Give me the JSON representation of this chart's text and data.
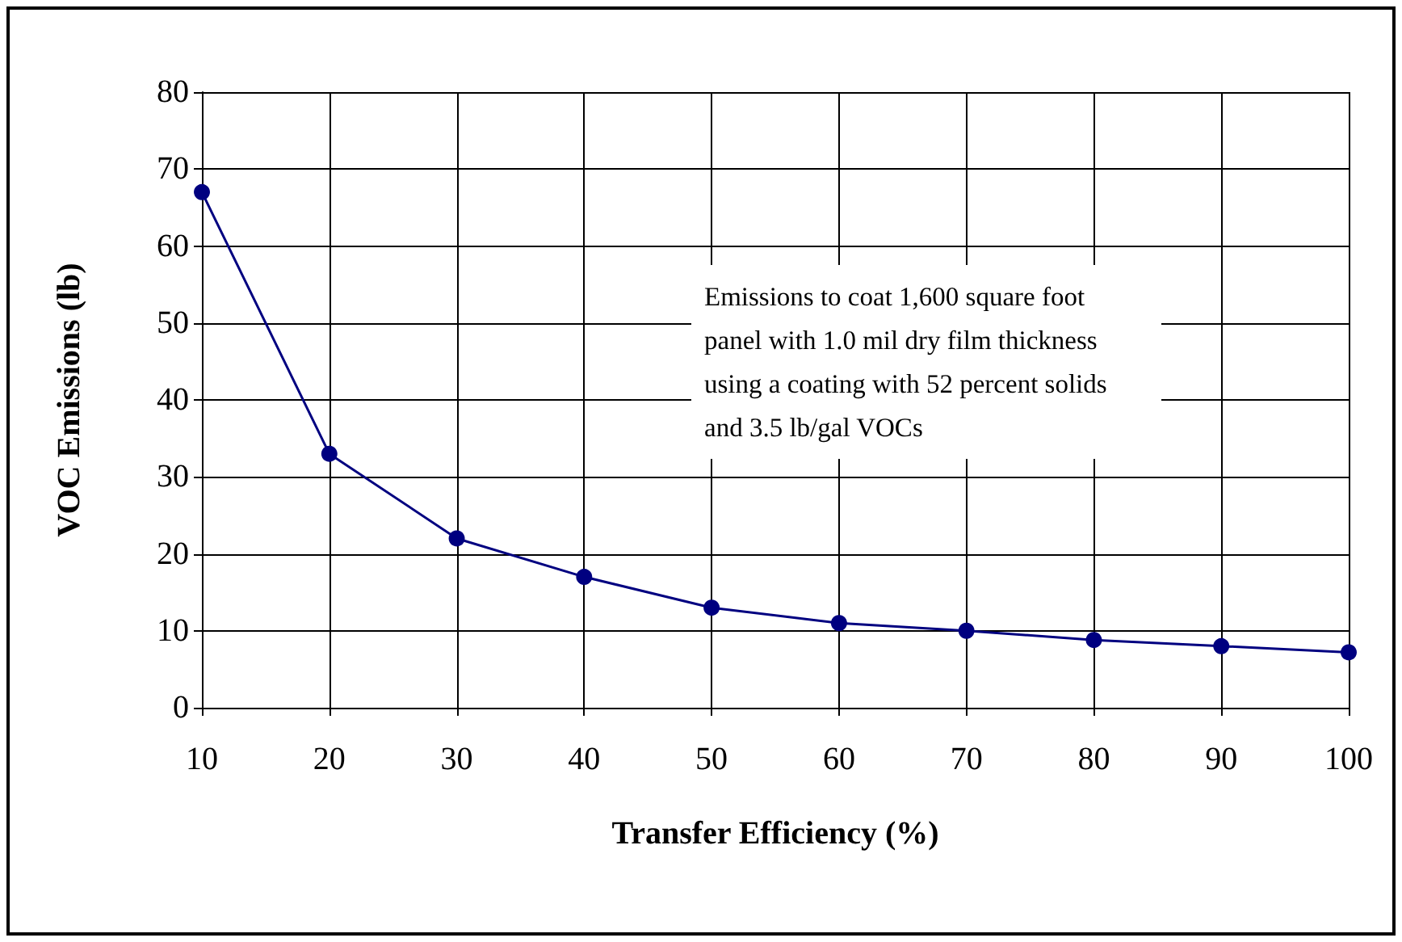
{
  "chart_data": {
    "type": "line",
    "xlabel": "Transfer Efficiency (%)",
    "ylabel": "VOC Emissions (lb)",
    "annotations": [
      "Emissions to coat 1,600 square foot panel with 1.0 mil dry film thickness using a coating with 52 percent solids and 3.5 lb/gal VOCs"
    ],
    "x": [
      10,
      20,
      30,
      40,
      50,
      60,
      70,
      80,
      90,
      100
    ],
    "series": [
      {
        "color": "#000080",
        "values": [
          67,
          33,
          22,
          17,
          13,
          11,
          10,
          8.8,
          8,
          7.2
        ]
      }
    ],
    "xlim": [
      10,
      100
    ],
    "xticks": [
      10,
      20,
      30,
      40,
      50,
      60,
      70,
      80,
      90,
      100
    ],
    "ylim": [
      0,
      80
    ],
    "yticks": [
      0,
      10,
      20,
      30,
      40,
      50,
      60,
      70,
      80
    ],
    "grid": true,
    "marker": "circle",
    "line_style": "solid"
  }
}
